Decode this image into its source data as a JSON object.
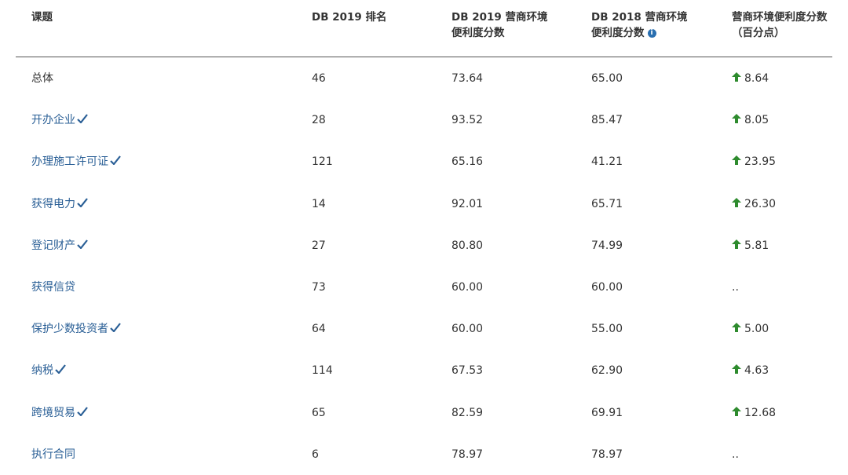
{
  "table": {
    "header": [
      [
        "课题"
      ],
      [
        "DB 2019 排名"
      ],
      [
        "DB 2019 营商环境",
        "便利度分数"
      ],
      [
        "DB 2018 营商环境",
        "便利度分数"
      ],
      [
        "营商环境便利度分数",
        "（百分点）"
      ]
    ],
    "rows": [
      [
        "总体",
        "46",
        "73.64",
        "65.00",
        "8.64"
      ],
      [
        "开办企业",
        "28",
        "93.52",
        "85.47",
        "8.05"
      ],
      [
        "办理施工许可证",
        "121",
        "65.16",
        "41.21",
        "23.95"
      ],
      [
        "获得电力",
        "14",
        "92.01",
        "65.71",
        "26.30"
      ],
      [
        "登记财产",
        "27",
        "80.80",
        "74.99",
        "5.81"
      ],
      [
        "获得信贷",
        "73",
        "60.00",
        "60.00",
        ".."
      ],
      [
        "保护少数投资者",
        "64",
        "60.00",
        "55.00",
        "5.00"
      ],
      [
        "纳税",
        "114",
        "67.53",
        "62.90",
        "4.63"
      ],
      [
        "跨境贸易",
        "65",
        "82.59",
        "69.91",
        "12.68"
      ],
      [
        "执行合同",
        "6",
        "78.97",
        "78.97",
        ".."
      ]
    ],
    "checked": [
      false,
      true,
      true,
      true,
      true,
      false,
      true,
      true,
      true,
      false
    ]
  }
}
